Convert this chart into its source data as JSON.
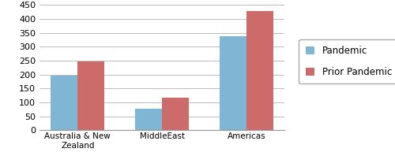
{
  "categories": [
    "Australia & New\nZealand",
    "MiddleEast",
    "Americas"
  ],
  "pandemic_values": [
    197,
    77,
    338
  ],
  "prior_pandemic_values": [
    247,
    117,
    428
  ],
  "pandemic_color": "#7EB6D4",
  "prior_pandemic_color": "#CD6B6B",
  "legend_labels": [
    "Pandemic",
    "Prior Pandemic"
  ],
  "ylim": [
    0,
    450
  ],
  "yticks": [
    0,
    50,
    100,
    150,
    200,
    250,
    300,
    350,
    400,
    450
  ],
  "bar_width": 0.32,
  "background_color": "#ffffff",
  "grid_color": "#bbbbbb",
  "figsize": [
    5.0,
    2.12
  ],
  "dpi": 100
}
